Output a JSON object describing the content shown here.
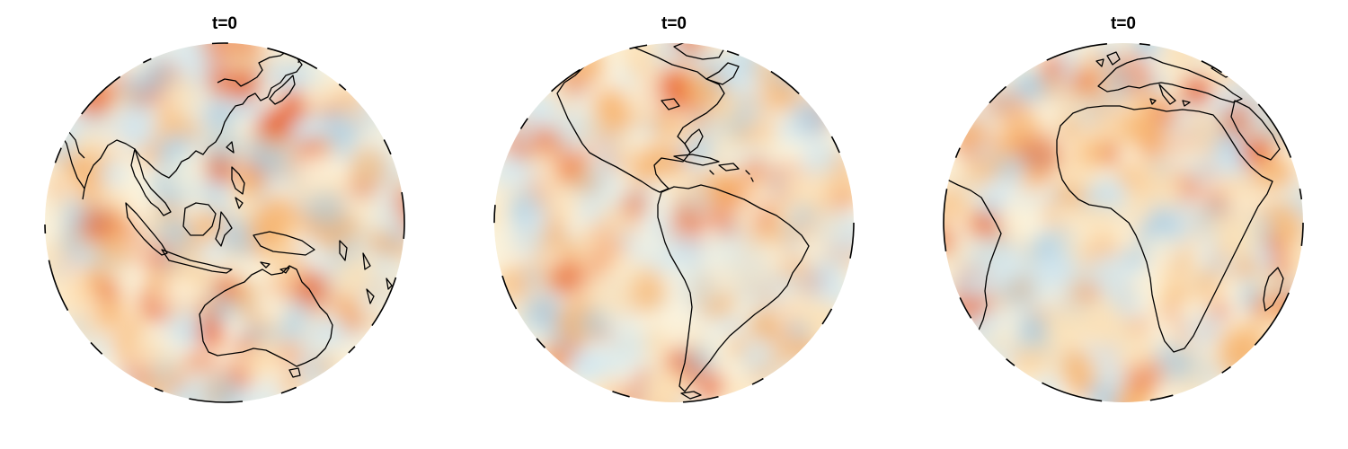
{
  "figure": {
    "panels": [
      {
        "title": "t=0",
        "view": "asia-australia-pacific"
      },
      {
        "title": "t=0",
        "view": "americas"
      },
      {
        "title": "t=0",
        "view": "africa-europe"
      }
    ]
  },
  "colors": {
    "warm_strong": "#e8602a",
    "warm_mid": "#f7b26b",
    "warm_light": "#fde2b8",
    "neutral": "#fbf3dc",
    "cool_light": "#d3e8f1",
    "cool_mid": "#a9cde3",
    "coastline": "#000000",
    "sphere_edge": "#000000"
  }
}
